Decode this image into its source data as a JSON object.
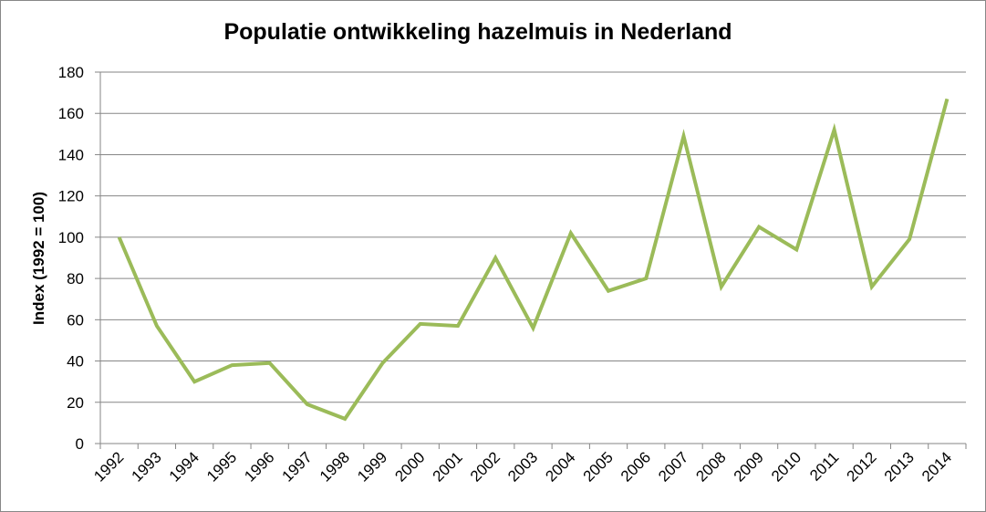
{
  "chart_data": {
    "type": "line",
    "title": "Populatie ontwikkeling hazelmuis in Nederland",
    "xlabel": "",
    "ylabel": "Index (1992 = 100)",
    "ylim": [
      0,
      180
    ],
    "yticks": [
      "0",
      "20",
      "40",
      "60",
      "80",
      "100",
      "120",
      "140",
      "160",
      "180"
    ],
    "grid": true,
    "legend": "none",
    "line_color": "#9BBB59",
    "categories": [
      "1992",
      "1993",
      "1994",
      "1995",
      "1996",
      "1997",
      "1998",
      "1999",
      "2000",
      "2001",
      "2002",
      "2003",
      "2004",
      "2005",
      "2006",
      "2007",
      "2008",
      "2009",
      "2010",
      "2011",
      "2012",
      "2013",
      "2014"
    ],
    "series": [
      {
        "values": [
          100,
          57,
          30,
          38,
          39,
          19,
          12,
          39,
          58,
          57,
          90,
          56,
          102,
          74,
          80,
          149,
          76,
          105,
          94,
          152,
          76,
          99,
          167
        ]
      }
    ]
  }
}
